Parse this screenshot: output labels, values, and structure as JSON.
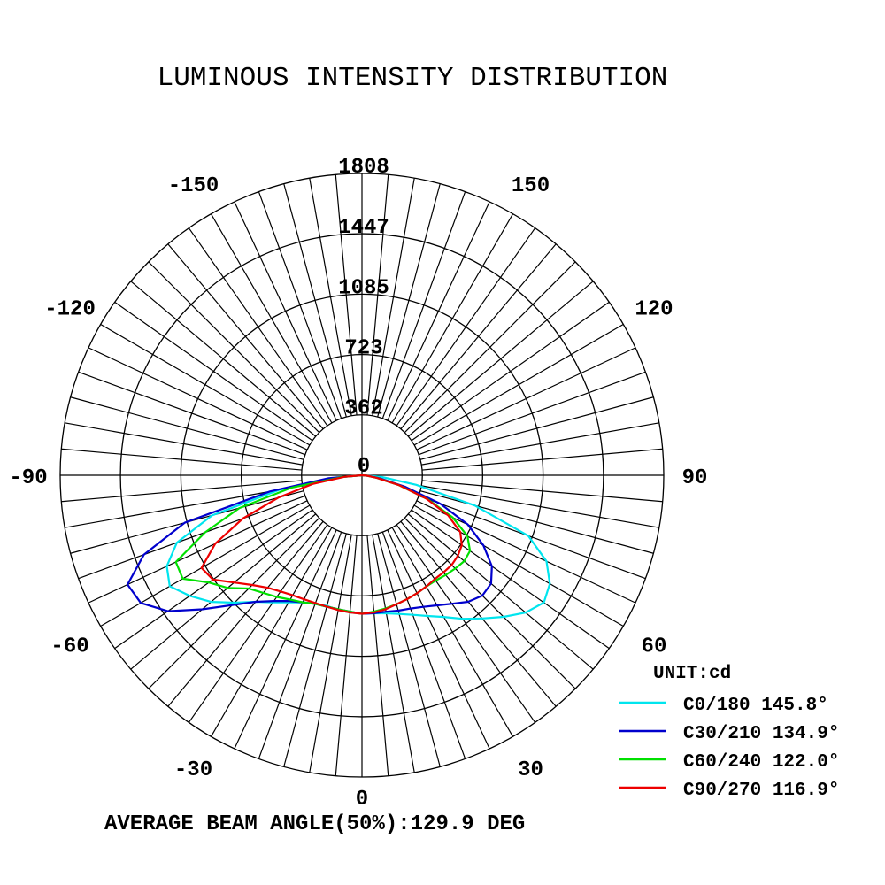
{
  "chart_data": {
    "type": "polar",
    "title": "LUMINOUS INTENSITY DISTRIBUTION",
    "unit_label": "UNIT:cd",
    "footer": "AVERAGE BEAM ANGLE(50%):129.9 DEG",
    "radial_max": 1808,
    "radial_ticks": [
      0,
      362,
      723,
      1085,
      1447,
      1808
    ],
    "radial_tick_labels": [
      "0",
      "362",
      "723",
      "1085",
      "1447",
      "1808"
    ],
    "angle_labels": [
      {
        "angle": 0,
        "text": "0"
      },
      {
        "angle": 30,
        "text": "30"
      },
      {
        "angle": -30,
        "text": "-30"
      },
      {
        "angle": 60,
        "text": "60"
      },
      {
        "angle": -60,
        "text": "-60"
      },
      {
        "angle": 90,
        "text": "90"
      },
      {
        "angle": -90,
        "text": "-90"
      },
      {
        "angle": 120,
        "text": "120"
      },
      {
        "angle": -120,
        "text": "-120"
      },
      {
        "angle": 150,
        "text": "150"
      },
      {
        "angle": -150,
        "text": "-150"
      }
    ],
    "spoke_step_deg": 5,
    "grid": true,
    "legend_position": "bottom-right",
    "series": [
      {
        "name": "C0/180 145.8°",
        "color": "#00e5ee",
        "angles": [
          -90,
          -85,
          -80,
          -75,
          -70,
          -65,
          -60,
          -55,
          -50,
          -45,
          -40,
          -35,
          -30,
          -25,
          -20,
          -15,
          -10,
          -5,
          0,
          5,
          10,
          15,
          20,
          25,
          30,
          35,
          40,
          45,
          50,
          55,
          60,
          65,
          70,
          75,
          80,
          85,
          90
        ],
        "values": [
          0,
          150,
          500,
          930,
          1180,
          1290,
          1330,
          1260,
          1180,
          1080,
          990,
          930,
          880,
          840,
          820,
          810,
          820,
          825,
          830,
          830,
          840,
          860,
          890,
          930,
          980,
          1050,
          1120,
          1200,
          1280,
          1330,
          1300,
          1220,
          1060,
          700,
          330,
          120,
          0
        ]
      },
      {
        "name": "C30/210 134.9°",
        "color": "#0000cd",
        "angles": [
          -90,
          -85,
          -80,
          -75,
          -70,
          -65,
          -60,
          -55,
          -50,
          -45,
          -40,
          -35,
          -30,
          -25,
          -20,
          -15,
          -10,
          -5,
          0,
          5,
          10,
          15,
          20,
          25,
          30,
          35,
          40,
          45,
          50,
          55,
          60,
          65,
          70,
          75,
          80,
          85,
          90
        ],
        "values": [
          0,
          200,
          560,
          1100,
          1390,
          1550,
          1530,
          1420,
          1250,
          1100,
          990,
          920,
          870,
          840,
          820,
          815,
          815,
          820,
          830,
          830,
          830,
          840,
          850,
          870,
          900,
          940,
          990,
          1020,
          1010,
          950,
          840,
          700,
          500,
          270,
          110,
          40,
          0
        ]
      },
      {
        "name": "C60/240 122.0°",
        "color": "#00e000",
        "angles": [
          -90,
          -85,
          -80,
          -75,
          -70,
          -65,
          -60,
          -55,
          -50,
          -45,
          -40,
          -35,
          -30,
          -25,
          -20,
          -15,
          -10,
          -5,
          0,
          5,
          10,
          15,
          20,
          25,
          30,
          35,
          40,
          45,
          50,
          55,
          60,
          65,
          70,
          75,
          80,
          85,
          90
        ],
        "values": [
          0,
          120,
          430,
          760,
          1000,
          1230,
          1240,
          1120,
          1050,
          960,
          920,
          890,
          860,
          840,
          820,
          815,
          815,
          820,
          830,
          820,
          810,
          800,
          790,
          780,
          770,
          770,
          780,
          790,
          800,
          790,
          730,
          600,
          420,
          230,
          90,
          30,
          0
        ]
      },
      {
        "name": "C90/270 116.9°",
        "color": "#ee0000",
        "angles": [
          -90,
          -85,
          -80,
          -75,
          -70,
          -65,
          -60,
          -55,
          -50,
          -45,
          -40,
          -35,
          -30,
          -25,
          -20,
          -15,
          -10,
          -5,
          0,
          5,
          10,
          15,
          20,
          25,
          30,
          35,
          40,
          45,
          50,
          55,
          60,
          65,
          70,
          75,
          80,
          85,
          90
        ],
        "values": [
          0,
          100,
          300,
          520,
          760,
          970,
          1110,
          1090,
          1000,
          930,
          880,
          850,
          830,
          820,
          815,
          815,
          820,
          825,
          830,
          825,
          815,
          800,
          790,
          780,
          770,
          760,
          760,
          760,
          750,
          730,
          680,
          570,
          410,
          230,
          90,
          30,
          0
        ]
      }
    ]
  }
}
